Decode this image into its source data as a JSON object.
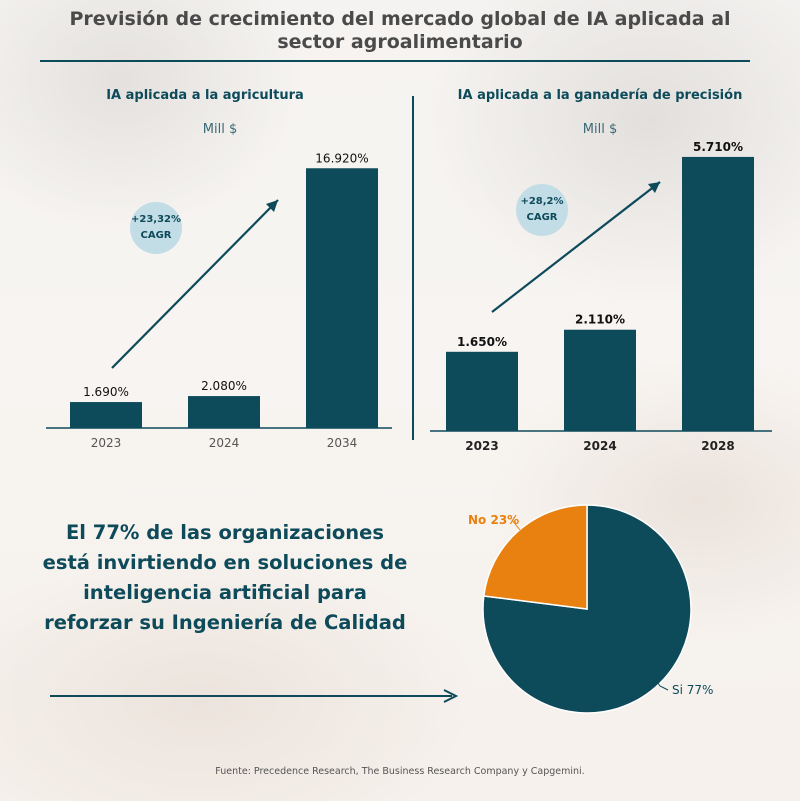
{
  "title": "Previsión de crecimiento del mercado global de IA aplicada al sector agroalimentario",
  "colors": {
    "bar": "#0d4a5a",
    "pie_yes": "#0d4a5a",
    "pie_no": "#e8810f",
    "cagr_bubble": "#c3dde6"
  },
  "chart_data": [
    {
      "type": "bar",
      "title": "IA aplicada a la agricultura",
      "ylabel": "Mill $",
      "categories": [
        "2023",
        "2024",
        "2034"
      ],
      "values": [
        1690,
        2080,
        16920
      ],
      "value_labels": [
        "1.690%",
        "2.080%",
        "16.920%"
      ],
      "ylim": [
        0,
        18500
      ],
      "annotation": {
        "line1": "+23,32%",
        "line2": "CAGR"
      },
      "grid": false
    },
    {
      "type": "bar",
      "title": "IA aplicada a la ganadería de precisión",
      "ylabel": "Mill $",
      "categories": [
        "2023",
        "2024",
        "2028"
      ],
      "values": [
        1650,
        2110,
        5710
      ],
      "value_labels": [
        "1.650%",
        "2.110%",
        "5.710%"
      ],
      "ylim": [
        0,
        6000
      ],
      "annotation": {
        "line1": "+28,2%",
        "line2": "CAGR"
      },
      "grid": false
    },
    {
      "type": "pie",
      "slices": [
        {
          "label": "Si 77%",
          "value": 77
        },
        {
          "label": "No 23%",
          "value": 23
        }
      ]
    }
  ],
  "headline": "El 77% de las organizaciones está invirtiendo en soluciones de inteligencia artificial para reforzar su Ingeniería de Calidad",
  "source": "Fuente:  Precedence Research, The Business Research Company y Capgemini."
}
